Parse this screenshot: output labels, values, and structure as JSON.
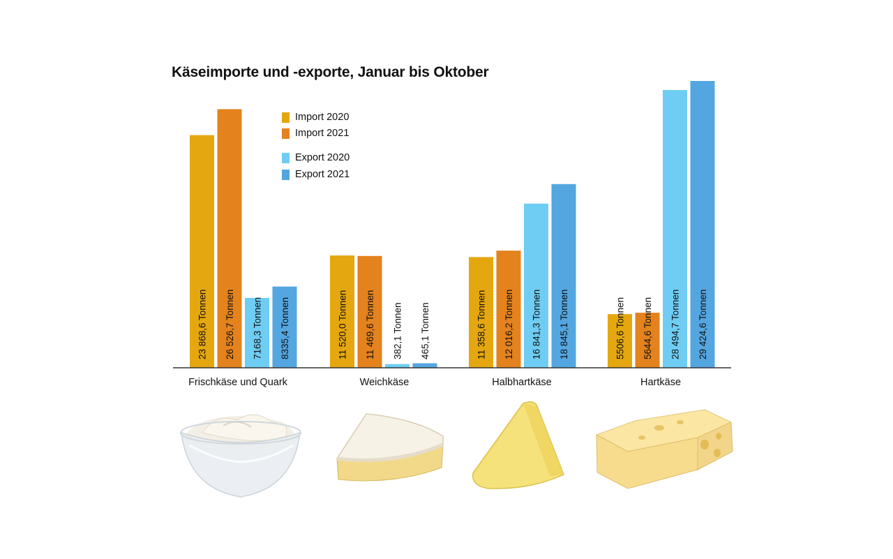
{
  "chart_data": {
    "type": "bar",
    "title": "Käseimporte und -exporte, Januar bis Oktober",
    "categories": [
      "Frischkäse und Quark",
      "Weichkäse",
      "Halbhartkäse",
      "Hartkäse"
    ],
    "series": [
      {
        "name": "Import 2020",
        "color": "#E5A70F",
        "values": [
          23868.6,
          11520.0,
          11358.6,
          5506.6
        ],
        "labels": [
          "23 868,6 Tonnen",
          "11 520,0 Tonnen",
          "11 358,6 Tonnen",
          "5506,6 Tonnen"
        ]
      },
      {
        "name": "Import 2021",
        "color": "#E4821D",
        "values": [
          26526.7,
          11469.6,
          12016.2,
          5644.6
        ],
        "labels": [
          "26 526,7 Tonnen",
          "11 469,6 Tonnen",
          "12 016,2 Tonnen",
          "5644,6 Tonnen"
        ]
      },
      {
        "name": "Export 2020",
        "color": "#6FCDF3",
        "values": [
          7168.3,
          382.1,
          16841.3,
          28494.7
        ],
        "labels": [
          "7168,3 Tonnen",
          "382,1 Tonnen",
          "16 841,3 Tonnen",
          "28 494,7 Tonnen"
        ]
      },
      {
        "name": "Export 2021",
        "color": "#54A6E0",
        "values": [
          8335.4,
          465.1,
          18845.1,
          29424.6
        ],
        "labels": [
          "8335,4 Tonnen",
          "465,1 Tonnen",
          "18 845,1 Tonnen",
          "29 424,6 Tonnen"
        ]
      }
    ],
    "unit": "Tonnen",
    "legend_position": "top-left",
    "grid": false,
    "ylim": [
      0,
      29424.6
    ]
  },
  "images": [
    "cream-cheese-bowl-icon",
    "brie-wedge-icon",
    "semi-hard-cheese-wedge-icon",
    "hard-cheese-block-icon"
  ]
}
